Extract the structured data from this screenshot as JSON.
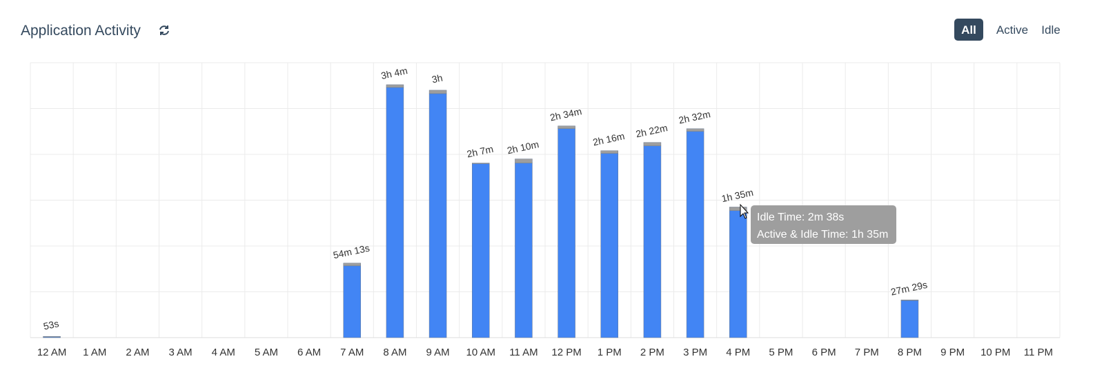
{
  "title": "Application Activity",
  "toggle_all": "All",
  "tooltip": [
    "Idle Time: 2m 38s",
    "Active & Idle Time: 1h 35m"
  ],
  "chart_data": {
    "type": "bar",
    "categories": [
      "12 AM",
      "1 AM",
      "2 AM",
      "3 AM",
      "4 AM",
      "5 AM",
      "6 AM",
      "7 AM",
      "8 AM",
      "9 AM",
      "10 AM",
      "11 AM",
      "12 PM",
      "1 PM",
      "2 PM",
      "3 PM",
      "4 PM",
      "5 PM",
      "6 PM",
      "7 PM",
      "8 PM",
      "9 PM",
      "10 PM",
      "11 PM"
    ],
    "series": [
      {
        "name": "Active",
        "color": "#4285f4",
        "values": [
          0.5,
          null,
          null,
          null,
          null,
          null,
          null,
          52.22,
          182,
          177.5,
          126.5,
          127,
          152,
          134,
          139.5,
          150,
          92.367,
          null,
          null,
          null,
          26.983,
          null,
          null,
          null
        ]
      },
      {
        "name": "Idle",
        "color": "#9e9e9e",
        "values": [
          0.383,
          null,
          null,
          null,
          null,
          null,
          null,
          2,
          2,
          2.5,
          0.5,
          3,
          2,
          2,
          2.5,
          2,
          2.633,
          null,
          null,
          null,
          0.5,
          null,
          null,
          null
        ]
      }
    ],
    "totals": {
      "values": [
        0.883,
        null,
        null,
        null,
        null,
        null,
        null,
        54.217,
        184,
        180,
        127,
        130,
        154,
        136,
        142,
        152,
        95,
        null,
        null,
        null,
        27.483,
        null,
        null,
        null
      ],
      "value_labels": [
        "53s",
        null,
        null,
        null,
        null,
        null,
        null,
        "54m 13s",
        "3h 4m",
        "3h",
        "2h 7m",
        "2h 10m",
        "2h 34m",
        "2h 16m",
        "2h 22m",
        "2h 32m",
        "1h 35m",
        null,
        null,
        null,
        "27m 29s",
        null,
        null,
        null
      ]
    },
    "ylim": [
      0,
      200
    ],
    "grid": true,
    "stacked": true
  }
}
